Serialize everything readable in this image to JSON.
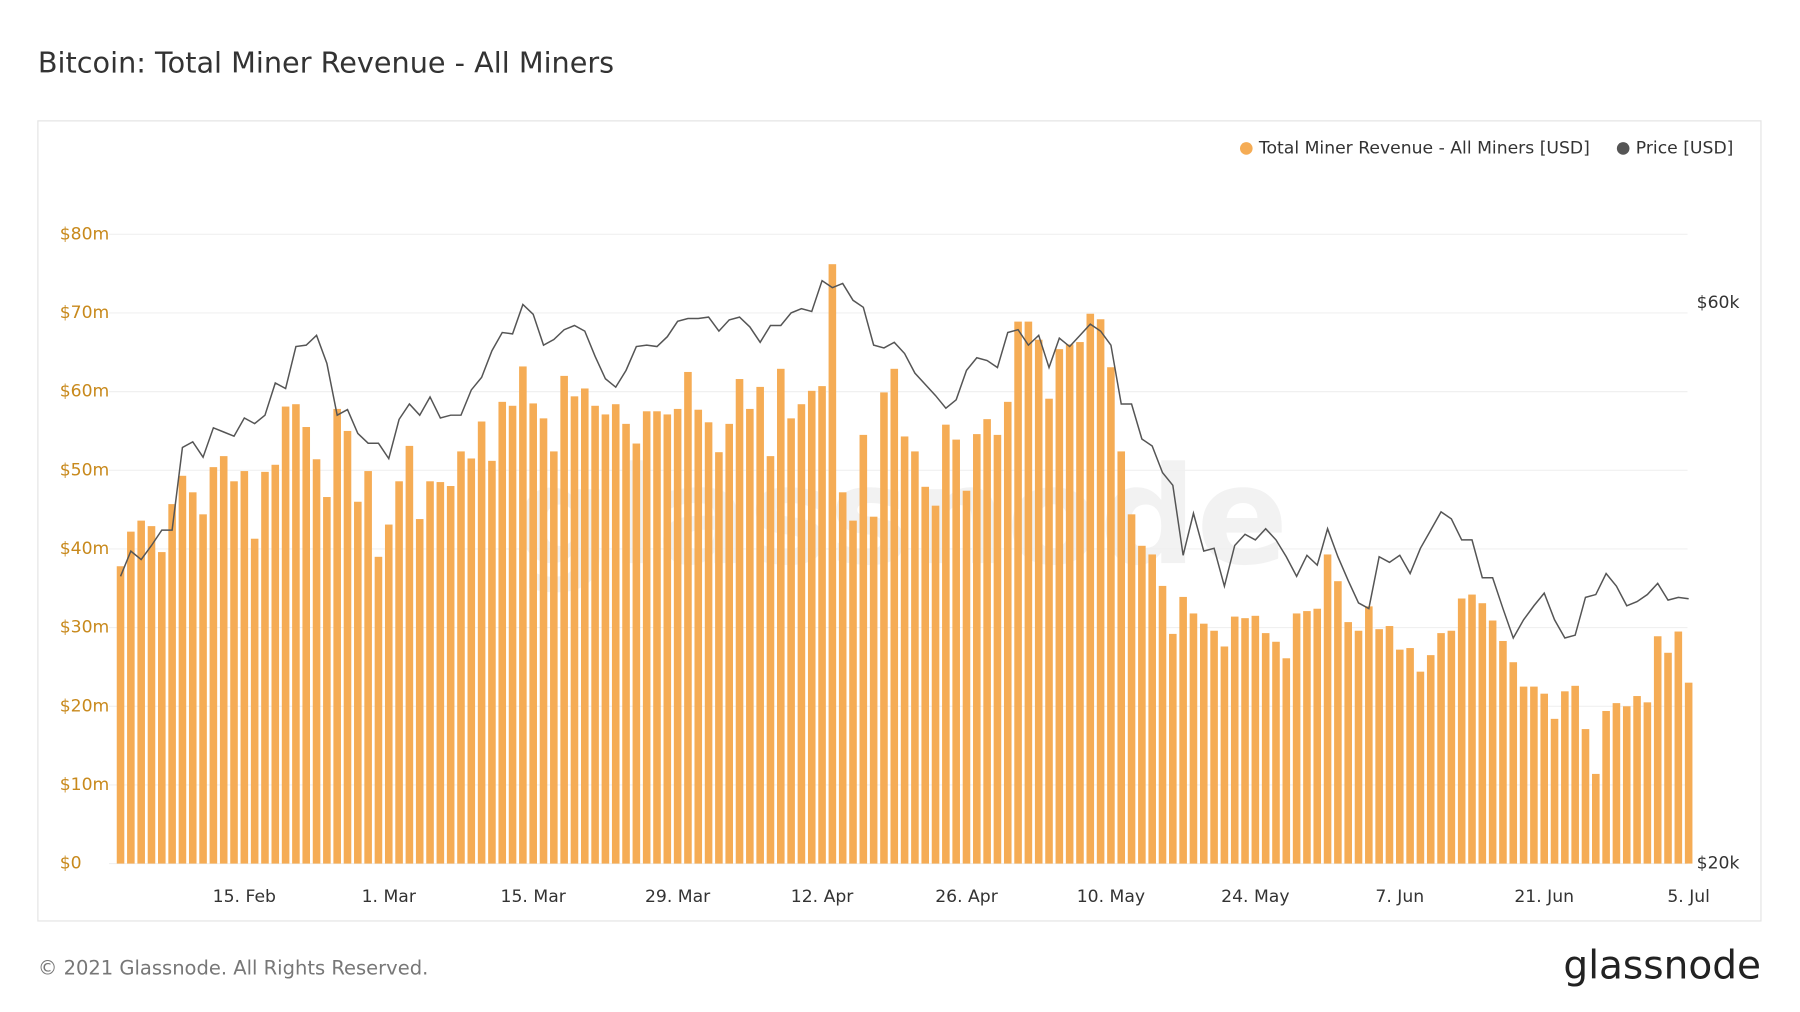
{
  "chart_data": {
    "type": "bar_line",
    "title": "Bitcoin: Total Miner Revenue - All Miners",
    "watermark": "glassnode",
    "footer": "© 2021 Glassnode. All Rights Reserved.",
    "logo": "glassnode",
    "categories": [
      null,
      null,
      null,
      null,
      null,
      null,
      null,
      null,
      null,
      null,
      null,
      null,
      "15. Feb",
      null,
      null,
      null,
      null,
      null,
      null,
      null,
      null,
      null,
      null,
      null,
      null,
      null,
      "1. Mar",
      null,
      null,
      null,
      null,
      null,
      null,
      null,
      null,
      null,
      null,
      null,
      null,
      null,
      "15. Mar",
      null,
      null,
      null,
      null,
      null,
      null,
      null,
      null,
      null,
      null,
      null,
      null,
      null,
      "29. Mar",
      null,
      null,
      null,
      null,
      null,
      null,
      null,
      null,
      null,
      null,
      null,
      null,
      null,
      "12. Apr",
      null,
      null,
      null,
      null,
      null,
      null,
      null,
      null,
      null,
      null,
      null,
      null,
      null,
      "26. Apr",
      null,
      null,
      null,
      null,
      null,
      null,
      null,
      null,
      null,
      null,
      null,
      null,
      null,
      "10. May",
      null,
      null,
      null,
      null,
      null,
      null,
      null,
      null,
      null,
      null,
      null,
      null,
      null,
      "24. May",
      null,
      null,
      null,
      null,
      null,
      null,
      null,
      null,
      null,
      null,
      null,
      null,
      null,
      "7. Jun",
      null,
      null,
      null,
      null,
      null,
      null,
      null,
      null,
      null,
      null,
      null,
      null,
      null,
      "21. Jun",
      null,
      null,
      null,
      null,
      null,
      null,
      null,
      null,
      null,
      null,
      null,
      null,
      null,
      "5. Jul"
    ],
    "series": [
      {
        "name": "Total Miner Revenue - All Miners [USD]",
        "color": "#f5ac55",
        "kind": "bar",
        "values": [
          37.8,
          42.2,
          43.6,
          42.9,
          39.6,
          45.7,
          49.3,
          47.2,
          44.4,
          50.4,
          51.8,
          48.6,
          49.9,
          41.3,
          49.8,
          50.7,
          58.1,
          58.4,
          55.5,
          51.4,
          46.6,
          57.8,
          55.0,
          46.0,
          49.9,
          39.0,
          43.1,
          48.6,
          53.1,
          43.8,
          48.6,
          48.5,
          48.0,
          52.4,
          51.5,
          56.2,
          51.2,
          58.7,
          58.2,
          63.2,
          58.5,
          56.6,
          52.4,
          62.0,
          59.4,
          60.4,
          58.2,
          57.1,
          58.4,
          55.9,
          53.4,
          57.5,
          57.5,
          57.1,
          57.8,
          62.5,
          57.7,
          56.1,
          52.3,
          55.9,
          61.6,
          57.8,
          60.6,
          51.8,
          62.9,
          56.6,
          58.4,
          60.1,
          60.7,
          76.2,
          47.2,
          43.6,
          54.5,
          44.1,
          59.9,
          62.9,
          54.3,
          52.4,
          47.9,
          45.5,
          55.8,
          53.9,
          47.4,
          54.6,
          56.5,
          54.5,
          58.7,
          68.9,
          68.9,
          66.6,
          59.1,
          65.4,
          66.0,
          66.3,
          69.9,
          69.2,
          63.1,
          52.4,
          44.4,
          40.4,
          39.3,
          35.3,
          29.2,
          33.9,
          31.8,
          30.5,
          29.6,
          27.6,
          31.4,
          31.2,
          31.5,
          29.3,
          28.2,
          26.1,
          31.8,
          32.1,
          32.4,
          39.3,
          35.9,
          30.7,
          29.6,
          32.7,
          29.8,
          30.2,
          27.2,
          27.4,
          24.4,
          26.5,
          29.3,
          29.6,
          33.7,
          34.2,
          33.1,
          30.9,
          28.3,
          25.6,
          22.5,
          22.5,
          21.6,
          18.4,
          21.9,
          22.6,
          17.1,
          11.4,
          19.4,
          20.4,
          20.0,
          21.3,
          20.5,
          28.9,
          26.8,
          29.5,
          23.0
        ]
      },
      {
        "name": "Price [USD]",
        "color": "#555555",
        "kind": "line",
        "axis": "y2",
        "values": [
          40500,
          42300,
          41700,
          42700,
          43800,
          43800,
          49700,
          50100,
          49000,
          51100,
          50800,
          50500,
          51800,
          51400,
          52000,
          54300,
          53900,
          56900,
          57000,
          57700,
          55700,
          52000,
          52400,
          50700,
          50000,
          50000,
          48900,
          51700,
          52800,
          52000,
          53300,
          51800,
          52000,
          52000,
          53800,
          54700,
          56600,
          57900,
          57800,
          59900,
          59200,
          57000,
          57400,
          58100,
          58400,
          58000,
          56200,
          54600,
          54000,
          55200,
          56900,
          57000,
          56900,
          57600,
          58700,
          58900,
          58900,
          59000,
          58000,
          58800,
          59000,
          58300,
          57200,
          58400,
          58400,
          59300,
          59600,
          59400,
          61600,
          61100,
          61400,
          60200,
          59700,
          57000,
          56800,
          57200,
          56400,
          55000,
          54200,
          53400,
          52500,
          53100,
          55200,
          56100,
          55900,
          55400,
          57900,
          58100,
          57000,
          57700,
          55400,
          57500,
          56900,
          57700,
          58500,
          58000,
          57000,
          52800,
          52800,
          50300,
          49800,
          47900,
          47000,
          42000,
          45000,
          42300,
          42500,
          39800,
          42700,
          43500,
          43100,
          43900,
          43100,
          41900,
          40500,
          42000,
          41300,
          43900,
          41900,
          40200,
          38600,
          38200,
          41900,
          41500,
          42000,
          40700,
          42500,
          43800,
          45100,
          44600,
          43100,
          43100,
          40400,
          40400,
          38200,
          36100,
          37400,
          38400,
          39300,
          37400,
          36100,
          36300,
          39000,
          39200,
          40700,
          39800,
          38400,
          38700,
          39200,
          40000,
          38800,
          39000,
          38900
        ]
      }
    ],
    "ylim": [
      0,
      88
    ],
    "yticks": [
      {
        "value": 0,
        "label": "$0"
      },
      {
        "value": 10,
        "label": "$10m"
      },
      {
        "value": 20,
        "label": "$20m"
      },
      {
        "value": 30,
        "label": "$30m"
      },
      {
        "value": 40,
        "label": "$40m"
      },
      {
        "value": 50,
        "label": "$50m"
      },
      {
        "value": 60,
        "label": "$60m"
      },
      {
        "value": 70,
        "label": "$70m"
      },
      {
        "value": 80,
        "label": "$80m"
      }
    ],
    "y2lim": [
      20000,
      69400
    ],
    "y2ticks": [
      {
        "value": 20000,
        "label": "$20k"
      },
      {
        "value": 60000,
        "label": "$60k"
      }
    ],
    "grid": true,
    "legend": "top-right"
  }
}
